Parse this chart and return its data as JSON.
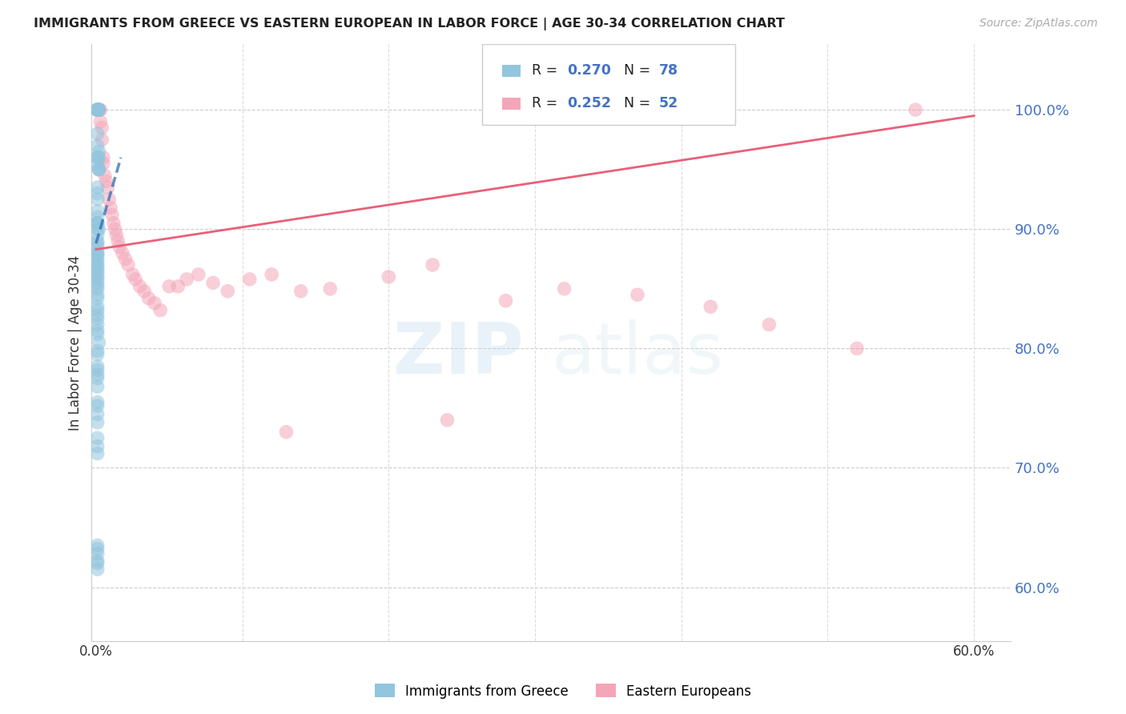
{
  "title": "IMMIGRANTS FROM GREECE VS EASTERN EUROPEAN IN LABOR FORCE | AGE 30-34 CORRELATION CHART",
  "source": "Source: ZipAtlas.com",
  "ylabel": "In Labor Force | Age 30-34",
  "color_blue": "#92c5de",
  "color_pink": "#f4a6b8",
  "color_blue_line": "#2166ac",
  "color_pink_line": "#e8607a",
  "watermark_zip": "ZIP",
  "watermark_atlas": "atlas",
  "r_blue": "0.270",
  "n_blue": "78",
  "r_pink": "0.252",
  "n_pink": "52",
  "xlim": [
    -0.003,
    0.625
  ],
  "ylim": [
    0.555,
    1.055
  ],
  "x_ticks": [
    0.0,
    0.1,
    0.2,
    0.3,
    0.4,
    0.5,
    0.6
  ],
  "y_ticks": [
    0.6,
    0.7,
    0.8,
    0.9,
    1.0
  ],
  "blue_x": [
    0.001,
    0.001,
    0.002,
    0.001,
    0.001,
    0.001,
    0.001,
    0.002,
    0.001,
    0.001,
    0.001,
    0.001,
    0.001,
    0.001,
    0.001,
    0.002,
    0.002,
    0.002,
    0.002,
    0.002,
    0.001,
    0.001,
    0.001,
    0.001,
    0.001,
    0.001,
    0.001,
    0.001,
    0.002,
    0.001,
    0.001,
    0.001,
    0.001,
    0.001,
    0.001,
    0.001,
    0.001,
    0.001,
    0.001,
    0.001,
    0.001,
    0.001,
    0.001,
    0.001,
    0.001,
    0.001,
    0.001,
    0.001,
    0.001,
    0.001,
    0.001,
    0.001,
    0.001,
    0.001,
    0.001,
    0.001,
    0.001,
    0.002,
    0.001,
    0.001,
    0.001,
    0.001,
    0.001,
    0.001,
    0.001,
    0.001,
    0.001,
    0.001,
    0.001,
    0.001,
    0.001,
    0.001,
    0.001,
    0.001,
    0.001,
    0.001,
    0.001,
    0.001
  ],
  "blue_y": [
    1.0,
    1.0,
    1.0,
    1.0,
    1.0,
    1.0,
    1.0,
    1.0,
    1.0,
    1.0,
    0.98,
    0.97,
    0.96,
    0.96,
    0.955,
    0.95,
    0.95,
    0.95,
    0.96,
    0.965,
    0.935,
    0.93,
    0.925,
    0.915,
    0.91,
    0.905,
    0.905,
    0.905,
    0.9,
    0.9,
    0.895,
    0.89,
    0.888,
    0.885,
    0.88,
    0.88,
    0.878,
    0.875,
    0.872,
    0.87,
    0.868,
    0.865,
    0.863,
    0.86,
    0.858,
    0.855,
    0.852,
    0.85,
    0.845,
    0.842,
    0.835,
    0.832,
    0.828,
    0.825,
    0.82,
    0.815,
    0.812,
    0.805,
    0.798,
    0.795,
    0.785,
    0.782,
    0.778,
    0.775,
    0.768,
    0.755,
    0.752,
    0.745,
    0.738,
    0.725,
    0.718,
    0.712,
    0.635,
    0.632,
    0.628,
    0.622,
    0.62,
    0.615
  ],
  "pink_x": [
    0.001,
    0.001,
    0.002,
    0.002,
    0.003,
    0.003,
    0.004,
    0.004,
    0.005,
    0.005,
    0.006,
    0.007,
    0.008,
    0.009,
    0.01,
    0.011,
    0.012,
    0.013,
    0.014,
    0.015,
    0.016,
    0.018,
    0.02,
    0.022,
    0.025,
    0.027,
    0.03,
    0.033,
    0.036,
    0.04,
    0.044,
    0.05,
    0.056,
    0.062,
    0.07,
    0.08,
    0.09,
    0.105,
    0.12,
    0.14,
    0.16,
    0.2,
    0.23,
    0.28,
    0.32,
    0.37,
    0.42,
    0.46,
    0.24,
    0.13,
    0.52,
    0.56
  ],
  "pink_y": [
    1.0,
    1.0,
    1.0,
    1.0,
    1.0,
    0.99,
    0.985,
    0.975,
    0.96,
    0.955,
    0.945,
    0.94,
    0.935,
    0.925,
    0.918,
    0.912,
    0.905,
    0.9,
    0.895,
    0.89,
    0.885,
    0.88,
    0.875,
    0.87,
    0.862,
    0.858,
    0.852,
    0.848,
    0.842,
    0.838,
    0.832,
    0.852,
    0.852,
    0.858,
    0.862,
    0.855,
    0.848,
    0.858,
    0.862,
    0.848,
    0.85,
    0.86,
    0.87,
    0.84,
    0.85,
    0.845,
    0.835,
    0.82,
    0.74,
    0.73,
    0.8,
    1.0
  ],
  "blue_line_x": [
    0.0,
    0.017
  ],
  "blue_line_y": [
    0.888,
    0.96
  ],
  "pink_line_x0": 0.0,
  "pink_line_x1": 0.6,
  "pink_line_y0": 0.883,
  "pink_line_y1": 0.995
}
